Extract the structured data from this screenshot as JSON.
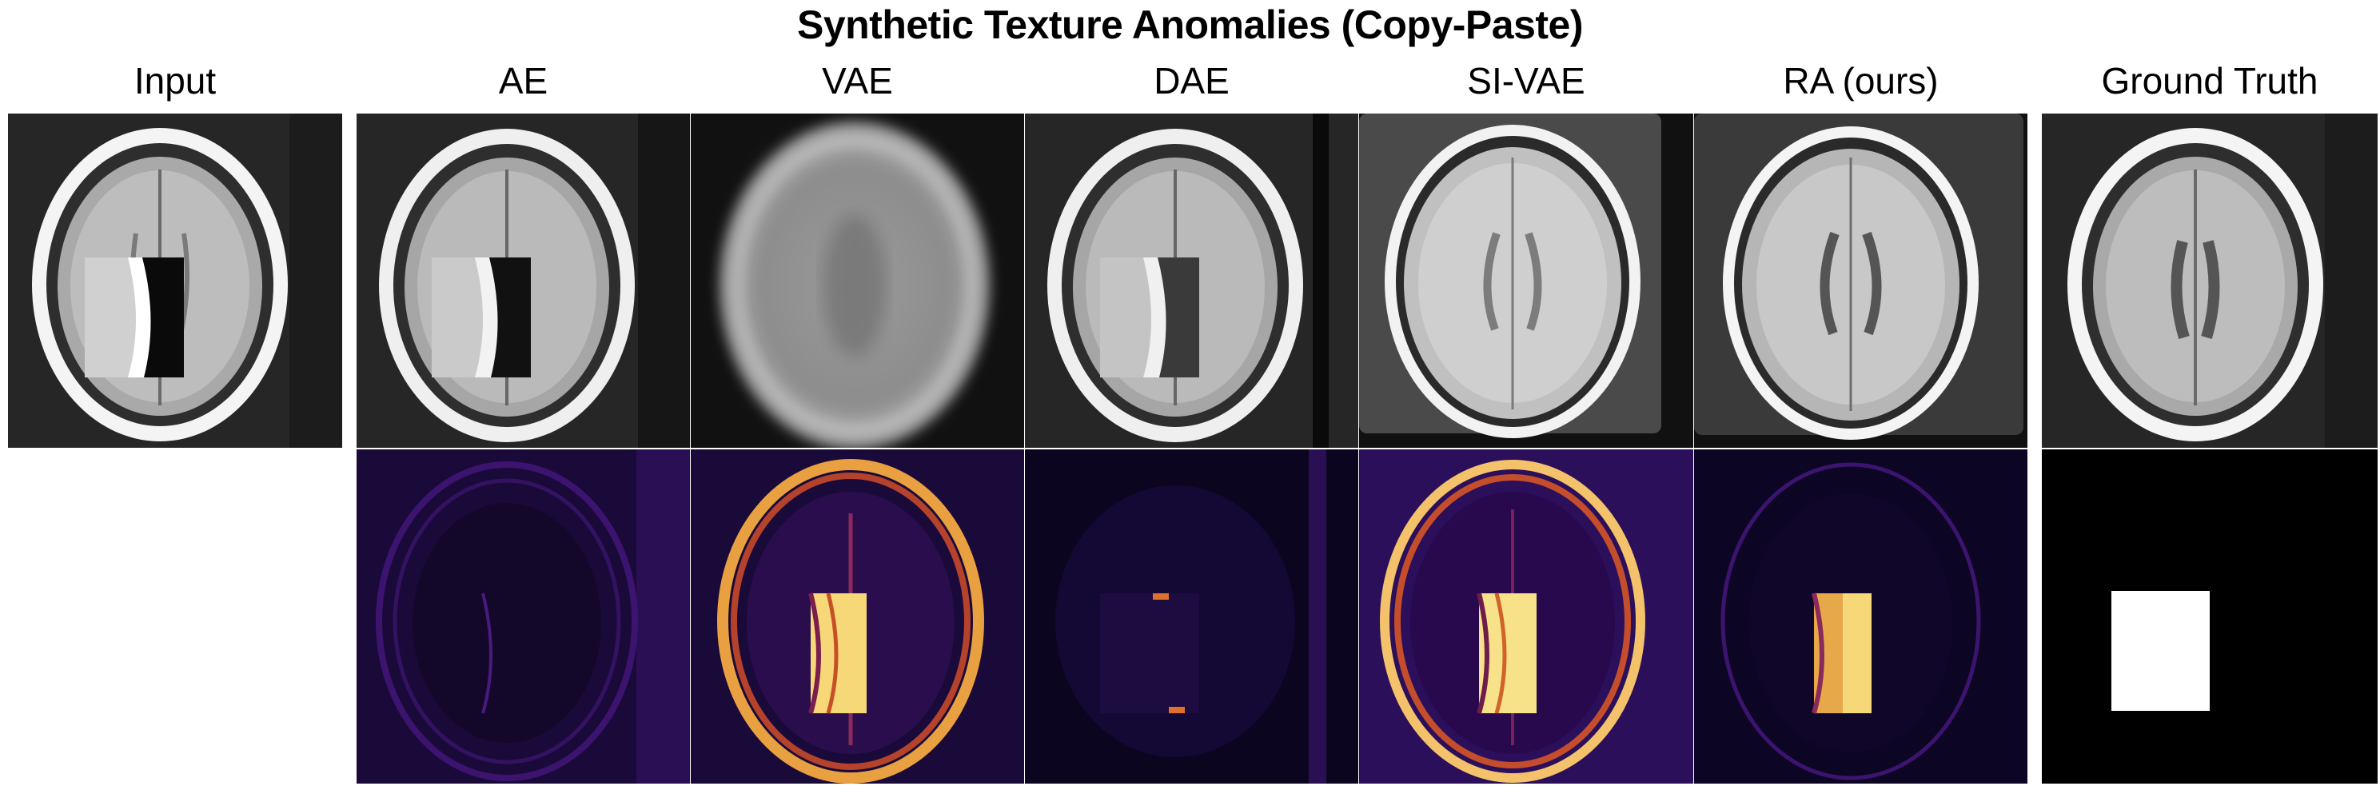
{
  "figure": {
    "title": "Synthetic Texture Anomalies (Copy-Paste)",
    "columns": [
      "Input",
      "AE",
      "VAE",
      "DAE",
      "SI-VAE",
      "RA (ours)",
      "Ground Truth"
    ]
  },
  "panels": {
    "row1": [
      {
        "column": "Input",
        "content": "brain MRI slice with pasted texture patch"
      },
      {
        "column": "AE",
        "content": "reconstruction"
      },
      {
        "column": "VAE",
        "content": "blurred reconstruction"
      },
      {
        "column": "DAE",
        "content": "reconstruction"
      },
      {
        "column": "SI-VAE",
        "content": "reconstruction"
      },
      {
        "column": "RA (ours)",
        "content": "reconstruction"
      },
      {
        "column": "Ground Truth",
        "content": "healthy brain MRI slice"
      }
    ],
    "row2": [
      {
        "column": "AE",
        "content": "anomaly map"
      },
      {
        "column": "VAE",
        "content": "anomaly map"
      },
      {
        "column": "DAE",
        "content": "anomaly map"
      },
      {
        "column": "SI-VAE",
        "content": "anomaly map"
      },
      {
        "column": "RA (ours)",
        "content": "anomaly map"
      },
      {
        "column": "Ground Truth",
        "content": "binary anomaly mask"
      }
    ]
  },
  "colors": {
    "heatmap_background": "#0b0520",
    "heatmap_low": "#3a0f6e",
    "heatmap_mid": "#d9582a",
    "heatmap_high": "#fbe8a0",
    "mask_foreground": "#ffffff",
    "mask_background": "#000000"
  }
}
